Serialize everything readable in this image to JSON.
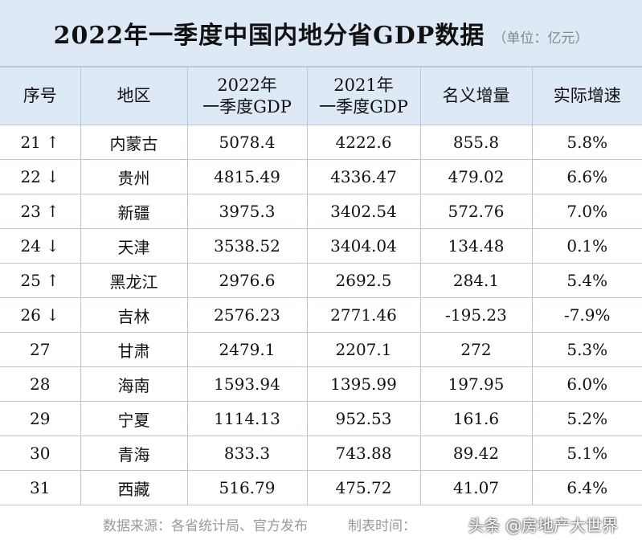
{
  "header": {
    "title": "2022年一季度中国内地分省GDP数据",
    "unit": "（单位：亿元）"
  },
  "table": {
    "columns": [
      "序号",
      "地区",
      "2022年\n一季度GDP",
      "2021年\n一季度GDP",
      "名义增量",
      "实际增速"
    ],
    "rows": [
      [
        "21 ↑",
        "内蒙古",
        "5078.4",
        "4222.6",
        "855.8",
        "5.8%"
      ],
      [
        "22 ↓",
        "贵州",
        "4815.49",
        "4336.47",
        "479.02",
        "6.6%"
      ],
      [
        "23 ↑",
        "新疆",
        "3975.3",
        "3402.54",
        "572.76",
        "7.0%"
      ],
      [
        "24 ↓",
        "天津",
        "3538.52",
        "3404.04",
        "134.48",
        "0.1%"
      ],
      [
        "25 ↑",
        "黑龙江",
        "2976.6",
        "2692.5",
        "284.1",
        "5.4%"
      ],
      [
        "26 ↓",
        "吉林",
        "2576.23",
        "2771.46",
        "-195.23",
        "-7.9%"
      ],
      [
        "27",
        "甘肃",
        "2479.1",
        "2207.1",
        "272",
        "5.3%"
      ],
      [
        "28",
        "海南",
        "1593.94",
        "1395.99",
        "197.95",
        "6.0%"
      ],
      [
        "29",
        "宁夏",
        "1114.13",
        "952.53",
        "161.6",
        "5.2%"
      ],
      [
        "30",
        "青海",
        "833.3",
        "743.88",
        "89.42",
        "5.1%"
      ],
      [
        "31",
        "西藏",
        "516.79",
        "475.72",
        "41.07",
        "6.4%"
      ]
    ]
  },
  "footer": {
    "source": "数据来源：各省统计局、官方发布",
    "time": "制表时间：",
    "watermark": "头条 @房地产大世界"
  }
}
